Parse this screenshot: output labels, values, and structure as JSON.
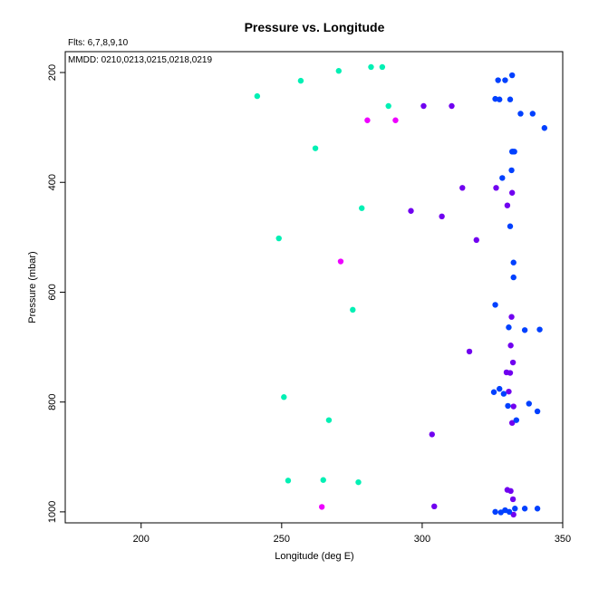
{
  "chart_data": {
    "type": "scatter",
    "title": "Pressure vs. Longitude",
    "xlabel": "Longitude (deg E)",
    "ylabel": "Pressure (mbar)",
    "annotations": [
      "Flts: 6,7,8,9,10",
      "MMDD: 0210,0213,0215,0218,0219"
    ],
    "xlim": [
      173,
      350
    ],
    "ylim": [
      1020,
      162
    ],
    "y_inverted": true,
    "grid": false,
    "x_ticks": [
      200,
      250,
      300,
      350
    ],
    "y_ticks": [
      200,
      400,
      600,
      800,
      1000
    ],
    "colors": {
      "teal": "#00f0b4",
      "magenta": "#ee00ff",
      "purple": "#7000f0",
      "blue": "#0040ff"
    },
    "series": [
      {
        "color_key": "teal",
        "x": [
          281.8,
          285.8,
          270.3,
          256.8,
          241.3,
          288.0,
          262.0,
          278.5,
          249.0,
          275.3,
          250.8,
          266.8,
          252.3,
          264.8,
          277.3
        ],
        "y": [
          190,
          190,
          197,
          215,
          243,
          261,
          338,
          447,
          502,
          632,
          791,
          833,
          943,
          942,
          946
        ]
      },
      {
        "color_key": "magenta",
        "x": [
          280.5,
          290.5,
          271.0,
          264.3
        ],
        "y": [
          287,
          287,
          544,
          991
        ]
      },
      {
        "color_key": "purple",
        "x": [
          300.5,
          310.5,
          314.3,
          326.3,
          330.3,
          332.0,
          296.0,
          307.0,
          319.3,
          331.8,
          316.8,
          331.5,
          330.0,
          332.3,
          331.3,
          330.8,
          332.5,
          332.0,
          303.5,
          330.3,
          331.5,
          332.3,
          304.3,
          332.5
        ],
        "y": [
          261,
          261,
          410,
          410,
          442,
          419,
          452,
          462,
          505,
          645,
          708,
          697,
          746,
          728,
          747,
          781,
          808,
          838,
          859,
          960,
          962,
          977,
          990,
          1005
        ]
      },
      {
        "color_key": "blue",
        "x": [
          332.0,
          327.0,
          329.5,
          326.0,
          327.5,
          331.3,
          335.0,
          339.3,
          343.5,
          332.3,
          332.8,
          332.0,
          328.5,
          331.8,
          331.3,
          332.5,
          332.5,
          326.0,
          330.8,
          336.5,
          341.8,
          327.5,
          325.5,
          329.0,
          338.0,
          330.5,
          341.0,
          333.5,
          326.0,
          328.0,
          329.5,
          331.0,
          333.0,
          336.5,
          341.0
        ],
        "y": [
          205,
          214,
          214,
          248,
          249,
          249,
          275,
          275,
          301,
          344,
          344,
          344,
          392,
          378,
          480,
          546,
          573,
          623,
          664,
          669,
          668,
          776,
          782,
          785,
          803,
          807,
          817,
          833,
          1000,
          1001,
          997,
          1000,
          994,
          994,
          994
        ]
      }
    ]
  }
}
